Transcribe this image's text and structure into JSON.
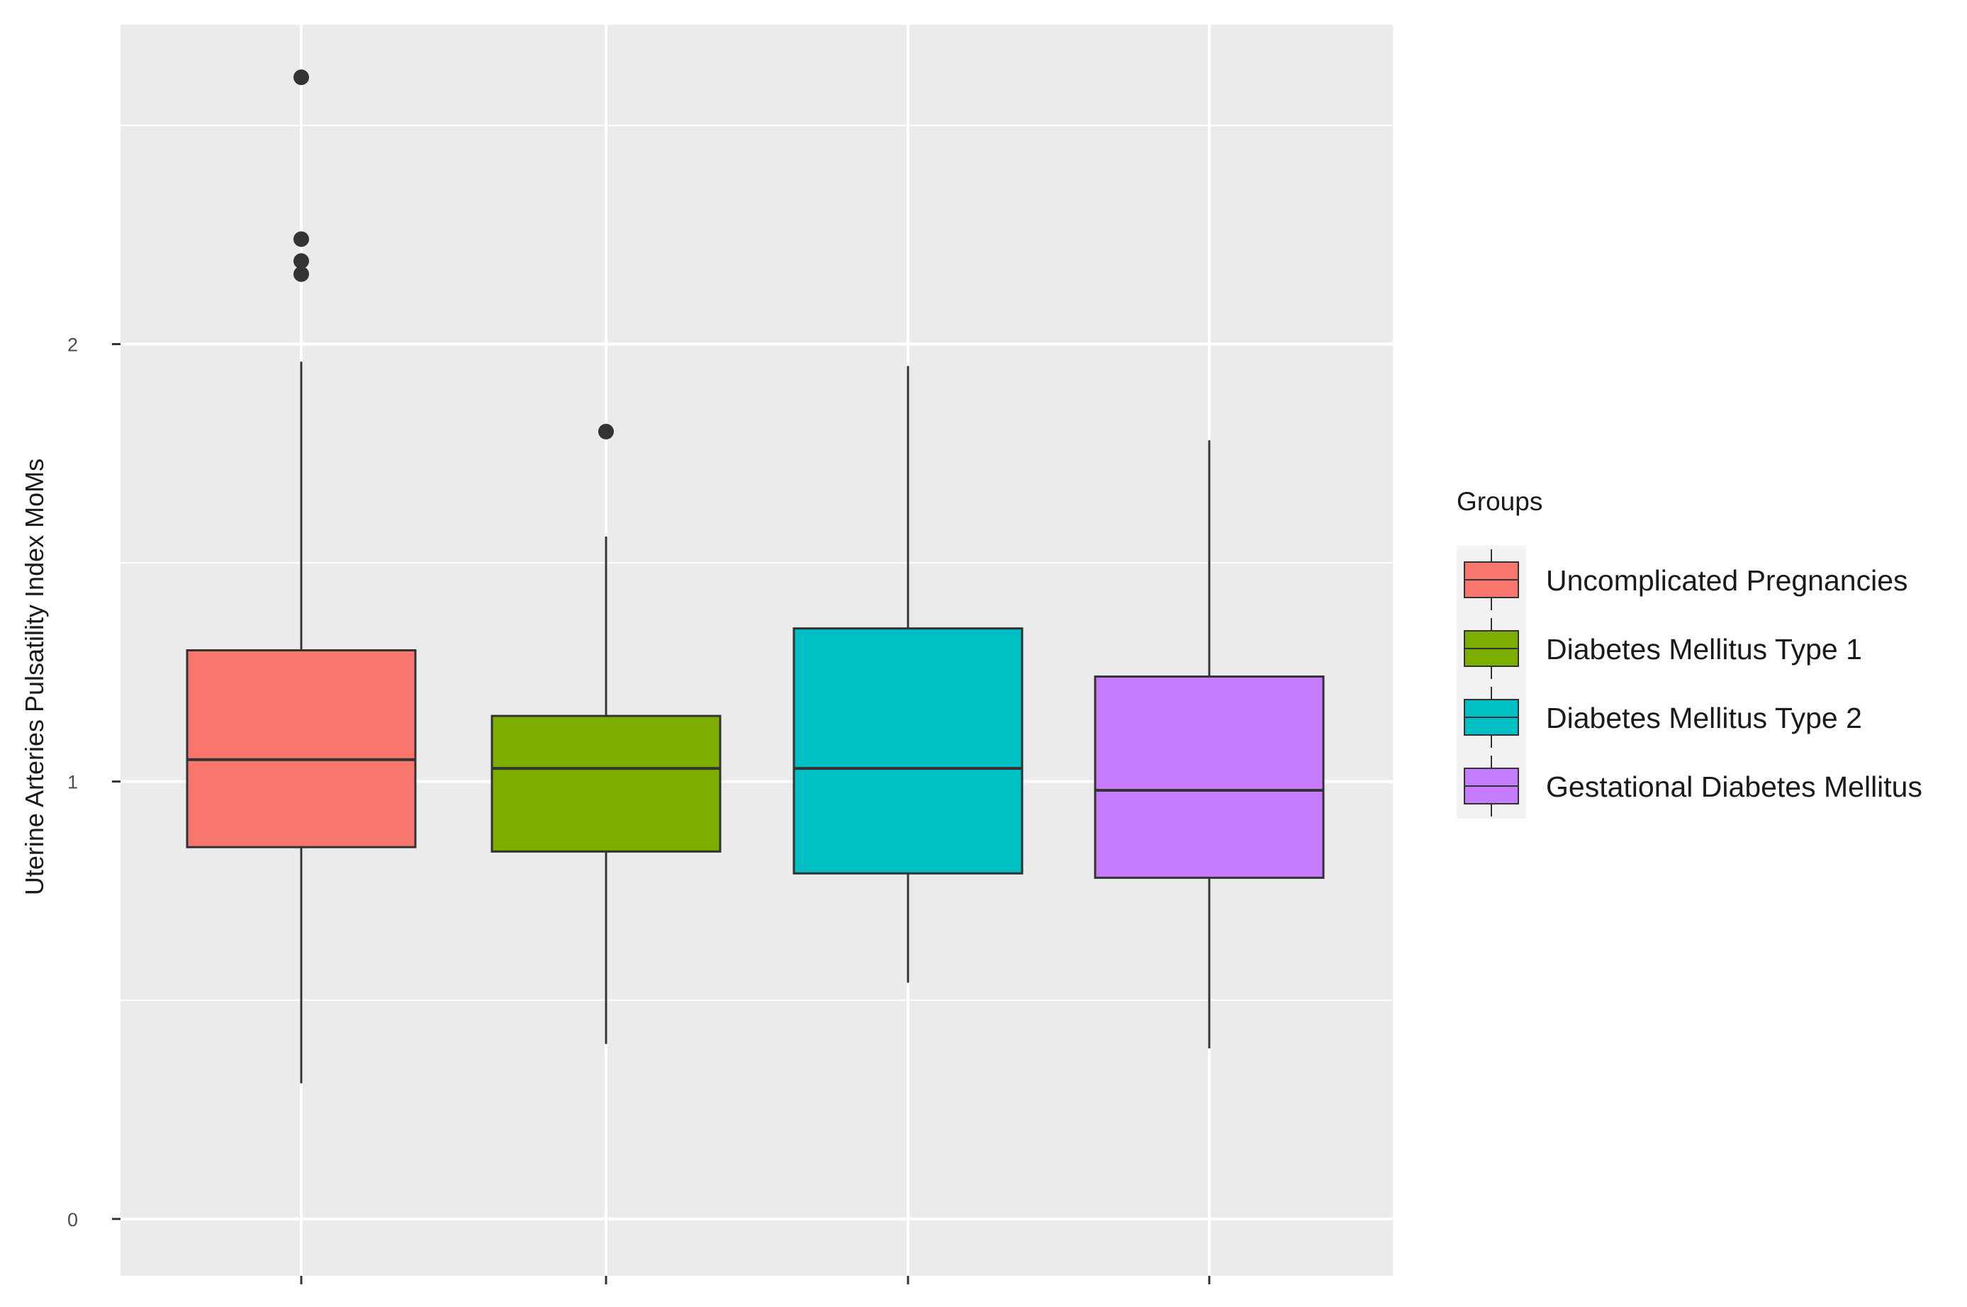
{
  "chart_data": {
    "type": "boxplot",
    "title": "",
    "xlabel": "",
    "ylabel": "Uterine Arteries Pulsatility Index MoMs",
    "ylim": [
      -0.13,
      2.73
    ],
    "yticks": [
      0,
      1,
      2
    ],
    "ytick_labels": [
      "0",
      "1",
      "2"
    ],
    "grid": true,
    "background": "#ebebeb",
    "legend": {
      "title": "Groups",
      "placement": "right"
    },
    "groups": [
      {
        "name": "Uncomplicated Pregnancies",
        "color": "#f8766d",
        "whisker_low": 0.31,
        "q1": 0.85,
        "median": 1.05,
        "q3": 1.3,
        "whisker_high": 1.96,
        "outliers": [
          2.61,
          2.24,
          2.19,
          2.16
        ]
      },
      {
        "name": "Diabetes Mellitus Type 1",
        "color": "#7cae00",
        "whisker_low": 0.4,
        "q1": 0.84,
        "median": 1.03,
        "q3": 1.15,
        "whisker_high": 1.56,
        "outliers": [
          1.8
        ]
      },
      {
        "name": "Diabetes Mellitus Type 2",
        "color": "#00bfc4",
        "whisker_low": 0.54,
        "q1": 0.79,
        "median": 1.03,
        "q3": 1.35,
        "whisker_high": 1.95,
        "outliers": []
      },
      {
        "name": "Gestational Diabetes Mellitus",
        "color": "#c77cff",
        "whisker_low": 0.39,
        "q1": 0.78,
        "median": 0.98,
        "q3": 1.24,
        "whisker_high": 1.78,
        "outliers": []
      }
    ]
  }
}
